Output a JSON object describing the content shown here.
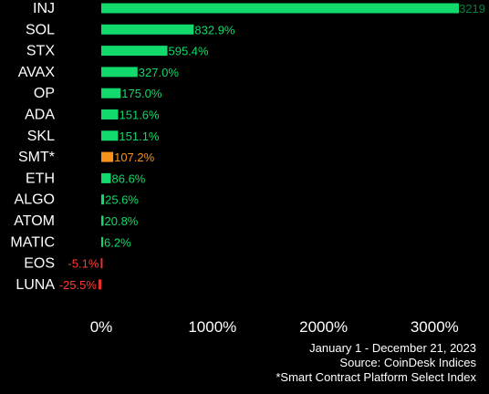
{
  "chart_data": {
    "type": "bar",
    "orientation": "horizontal",
    "categories": [
      "INJ",
      "SOL",
      "STX",
      "AVAX",
      "OP",
      "ADA",
      "SKL",
      "SMT*",
      "ETH",
      "ALGO",
      "ATOM",
      "MATIC",
      "EOS",
      "LUNA"
    ],
    "values": [
      3219,
      832.9,
      595.4,
      327.0,
      175.0,
      151.6,
      151.1,
      107.2,
      86.6,
      25.6,
      20.8,
      6.2,
      -5.1,
      -25.5
    ],
    "value_labels": [
      "3219",
      "832.9%",
      "595.4%",
      "327.0%",
      "175.0%",
      "151.6%",
      "151.1%",
      "107.2%",
      "86.6%",
      "25.6%",
      "20.8%",
      "6.2%",
      "-5.1%",
      "-25.5%"
    ],
    "highlight": [
      "SMT*"
    ],
    "xlim": [
      -50,
      3450
    ],
    "xticks": [
      0,
      1000,
      2000,
      3000
    ],
    "xtick_labels": [
      "0%",
      "1000%",
      "2000%",
      "3000%"
    ],
    "grid": false,
    "colors": {
      "positive": "#11d96b",
      "negative": "#e8312f",
      "highlight": "#f7931a",
      "positive_label": "#11d96b",
      "negative_label": "#ff3b30",
      "highlight_label": "#f7931a",
      "category_label": "#ffffff",
      "background": "#000000"
    }
  },
  "footnotes": {
    "date_range": "January 1 - December 21, 2023",
    "source": "Source: CoinDesk Indices",
    "note": "*Smart Contract Platform Select Index"
  }
}
